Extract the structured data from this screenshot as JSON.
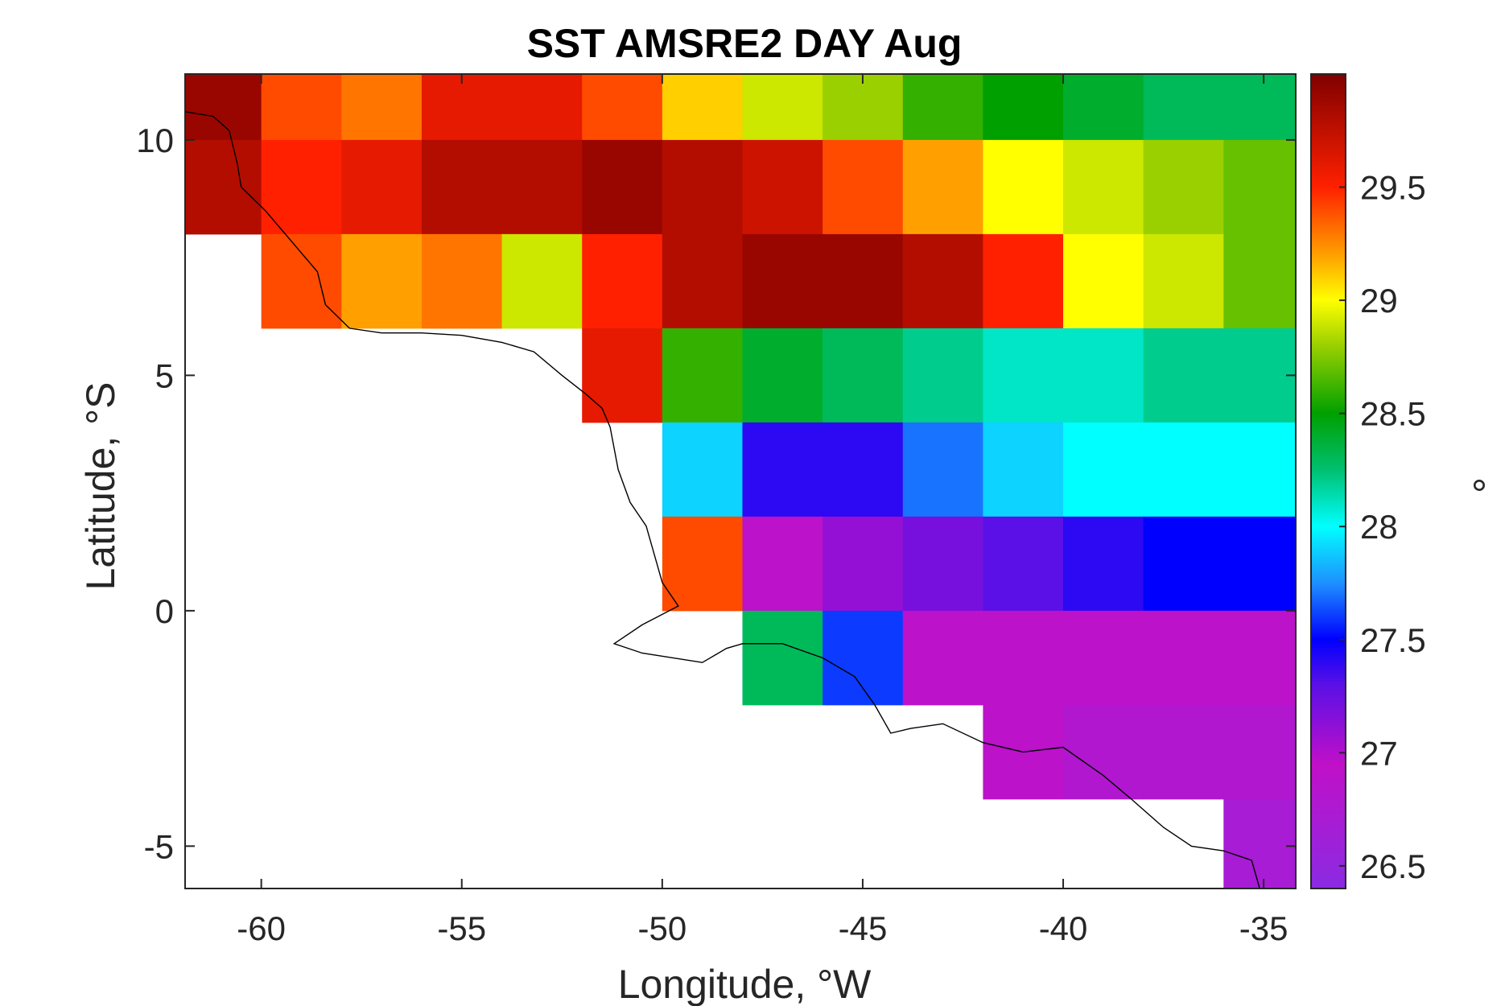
{
  "chart_data": {
    "type": "heatmap",
    "title": "SST AMSRE2 DAY Aug",
    "xlabel": "Longitude, °W",
    "ylabel": "Latitude, °S",
    "colorbar_label": "°",
    "xlim": [
      -61.9,
      -34.2
    ],
    "ylim": [
      -5.9,
      11.4
    ],
    "x_ticks": [
      -60,
      -55,
      -50,
      -45,
      -40,
      -35
    ],
    "x_tick_labels": [
      "-60",
      "-55",
      "-50",
      "-45",
      "-40",
      "-35"
    ],
    "y_ticks": [
      -5,
      0,
      5,
      10
    ],
    "y_tick_labels": [
      "-5",
      "0",
      "5",
      "10"
    ],
    "color_range": [
      26.4,
      30.0
    ],
    "colorbar_ticks": [
      26.5,
      27,
      27.5,
      28,
      28.5,
      29,
      29.5
    ],
    "colorbar_tick_labels": [
      "26.5",
      "27",
      "27.5",
      "28",
      "28.5",
      "29",
      "29.5"
    ],
    "colormap": [
      {
        "value": 26.4,
        "color": "#8a2be2"
      },
      {
        "value": 26.95,
        "color": "#c010c8"
      },
      {
        "value": 27.3,
        "color": "#5a10e6"
      },
      {
        "value": 27.5,
        "color": "#0000ff"
      },
      {
        "value": 27.75,
        "color": "#1e90ff"
      },
      {
        "value": 28.0,
        "color": "#00ffff"
      },
      {
        "value": 28.25,
        "color": "#00c070"
      },
      {
        "value": 28.5,
        "color": "#00a000"
      },
      {
        "value": 28.8,
        "color": "#9ad000"
      },
      {
        "value": 29.0,
        "color": "#ffff00"
      },
      {
        "value": 29.2,
        "color": "#ffa000"
      },
      {
        "value": 29.5,
        "color": "#ff2000"
      },
      {
        "value": 30.0,
        "color": "#800000"
      }
    ],
    "grid": false,
    "land_color": "#ffffff",
    "coastline_color": "#000000",
    "coastline": [
      [
        -61.9,
        10.6
      ],
      [
        -61.2,
        10.5
      ],
      [
        -60.8,
        10.2
      ],
      [
        -60.6,
        9.5
      ],
      [
        -60.5,
        9.0
      ],
      [
        -59.9,
        8.5
      ],
      [
        -59.2,
        7.8
      ],
      [
        -58.6,
        7.2
      ],
      [
        -58.4,
        6.5
      ],
      [
        -57.8,
        6.0
      ],
      [
        -57.0,
        5.9
      ],
      [
        -56.0,
        5.9
      ],
      [
        -55.0,
        5.85
      ],
      [
        -54.0,
        5.7
      ],
      [
        -53.2,
        5.5
      ],
      [
        -52.5,
        5.0
      ],
      [
        -51.9,
        4.6
      ],
      [
        -51.5,
        4.3
      ],
      [
        -51.3,
        3.9
      ],
      [
        -51.1,
        3.0
      ],
      [
        -50.8,
        2.3
      ],
      [
        -50.4,
        1.8
      ],
      [
        -50.2,
        1.2
      ],
      [
        -50.0,
        0.6
      ],
      [
        -49.6,
        0.1
      ],
      [
        -50.5,
        -0.3
      ],
      [
        -51.2,
        -0.7
      ],
      [
        -50.5,
        -0.9
      ],
      [
        -49.0,
        -1.1
      ],
      [
        -48.4,
        -0.8
      ],
      [
        -48.0,
        -0.7
      ],
      [
        -47.0,
        -0.7
      ],
      [
        -46.0,
        -1.0
      ],
      [
        -45.2,
        -1.4
      ],
      [
        -44.7,
        -2.0
      ],
      [
        -44.3,
        -2.6
      ],
      [
        -43.8,
        -2.5
      ],
      [
        -43.0,
        -2.4
      ],
      [
        -42.0,
        -2.8
      ],
      [
        -41.0,
        -3.0
      ],
      [
        -40.0,
        -2.9
      ],
      [
        -39.0,
        -3.5
      ],
      [
        -38.3,
        -4.0
      ],
      [
        -37.5,
        -4.6
      ],
      [
        -36.8,
        -5.0
      ],
      [
        -36.0,
        -5.1
      ],
      [
        -35.3,
        -5.3
      ],
      [
        -35.1,
        -5.9
      ]
    ],
    "sample_grid": {
      "lon": [
        -61,
        -59,
        -57,
        -55,
        -53,
        -51,
        -49,
        -47,
        -45,
        -43,
        -41,
        -39,
        -37,
        -35
      ],
      "lat": [
        11,
        9,
        7,
        5,
        3,
        1,
        -1,
        -3,
        -5
      ],
      "sst": [
        [
          29.9,
          29.4,
          29.3,
          29.6,
          29.6,
          29.4,
          29.1,
          28.9,
          28.8,
          28.6,
          28.5,
          28.4,
          28.3,
          28.3
        ],
        [
          29.8,
          29.5,
          29.6,
          29.8,
          29.8,
          29.9,
          29.8,
          29.7,
          29.4,
          29.2,
          29.0,
          28.9,
          28.8,
          28.7
        ],
        [
          null,
          29.4,
          29.2,
          29.3,
          28.9,
          29.5,
          29.8,
          29.9,
          29.9,
          29.8,
          29.5,
          29.0,
          28.9,
          28.7
        ],
        [
          null,
          null,
          null,
          null,
          null,
          29.6,
          28.6,
          28.4,
          28.3,
          28.2,
          28.1,
          28.1,
          28.2,
          28.2
        ],
        [
          null,
          null,
          null,
          null,
          null,
          null,
          27.9,
          27.4,
          27.4,
          27.7,
          27.9,
          28.0,
          28.0,
          28.0
        ],
        [
          null,
          null,
          null,
          null,
          null,
          null,
          29.4,
          26.9,
          27.1,
          27.2,
          27.3,
          27.4,
          27.5,
          27.5
        ],
        [
          null,
          null,
          null,
          null,
          null,
          null,
          null,
          28.3,
          27.6,
          26.9,
          26.9,
          26.9,
          26.9,
          26.9
        ],
        [
          null,
          null,
          null,
          null,
          null,
          null,
          null,
          null,
          null,
          null,
          26.9,
          26.8,
          26.8,
          26.8
        ],
        [
          null,
          null,
          null,
          null,
          null,
          null,
          null,
          null,
          null,
          null,
          null,
          null,
          null,
          26.7
        ]
      ]
    }
  }
}
